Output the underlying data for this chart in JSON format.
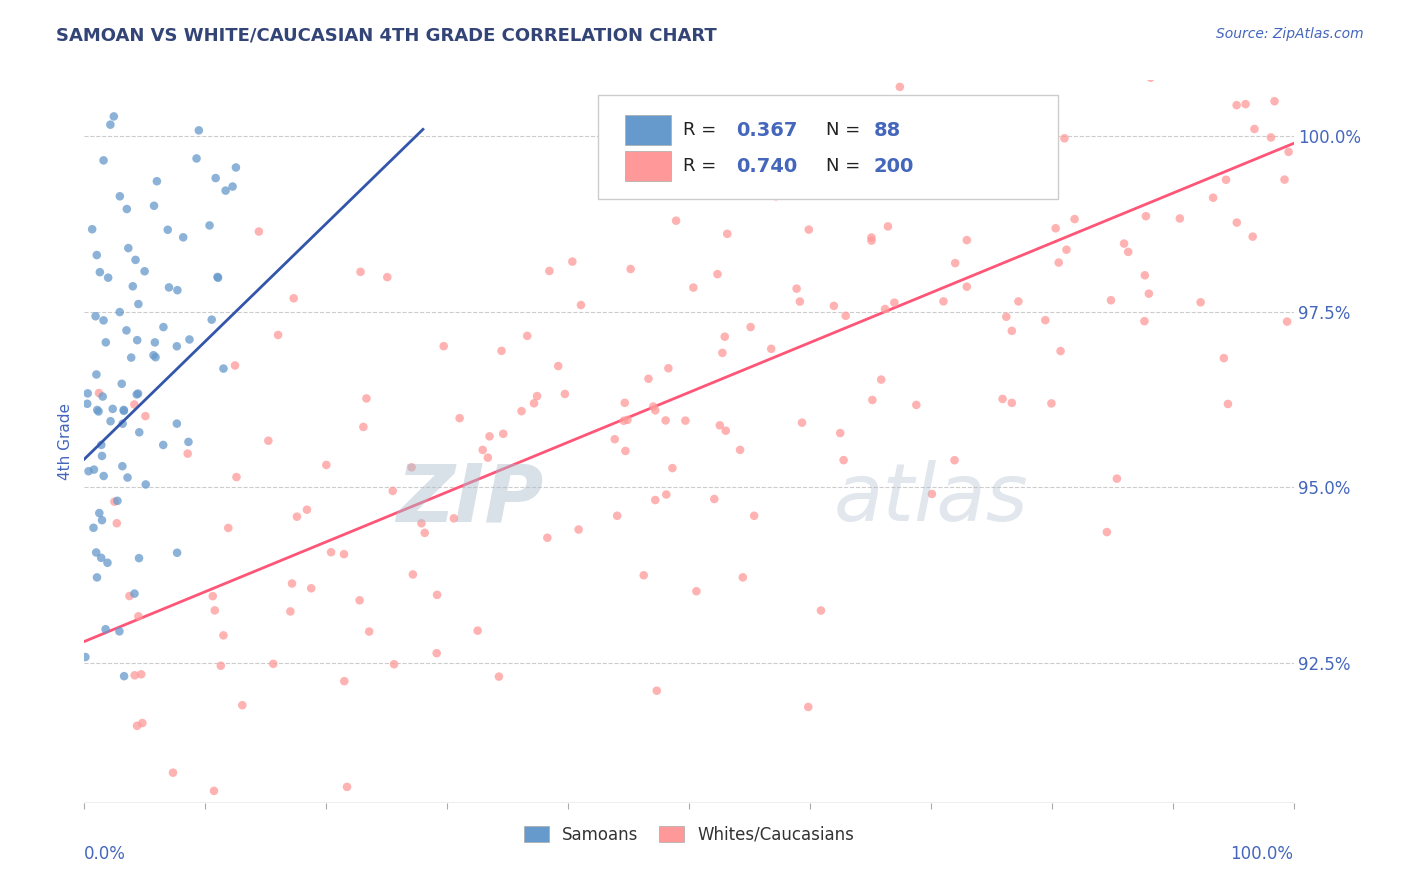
{
  "title": "SAMOAN VS WHITE/CAUCASIAN 4TH GRADE CORRELATION CHART",
  "source_text": "Source: ZipAtlas.com",
  "ylabel": "4th Grade",
  "y_tick_labels": [
    "92.5%",
    "95.0%",
    "97.5%",
    "100.0%"
  ],
  "y_tick_values": [
    0.925,
    0.95,
    0.975,
    1.0
  ],
  "x_range": [
    0.0,
    1.0
  ],
  "y_range": [
    0.905,
    1.008
  ],
  "blue_color": "#6699CC",
  "pink_color": "#FF9999",
  "trend_blue": "#3355AA",
  "trend_pink": "#FF5577",
  "watermark_zip_color": "#AABBCC",
  "watermark_atlas_color": "#AABBCC",
  "title_color": "#334477",
  "axis_label_color": "#4466BB",
  "legend_value_color": "#4466BB",
  "background_color": "#FFFFFF",
  "blue_trend_x": [
    0.0,
    0.28
  ],
  "blue_trend_y": [
    0.954,
    1.001
  ],
  "pink_trend_x": [
    0.0,
    1.0
  ],
  "pink_trend_y": [
    0.928,
    0.999
  ]
}
